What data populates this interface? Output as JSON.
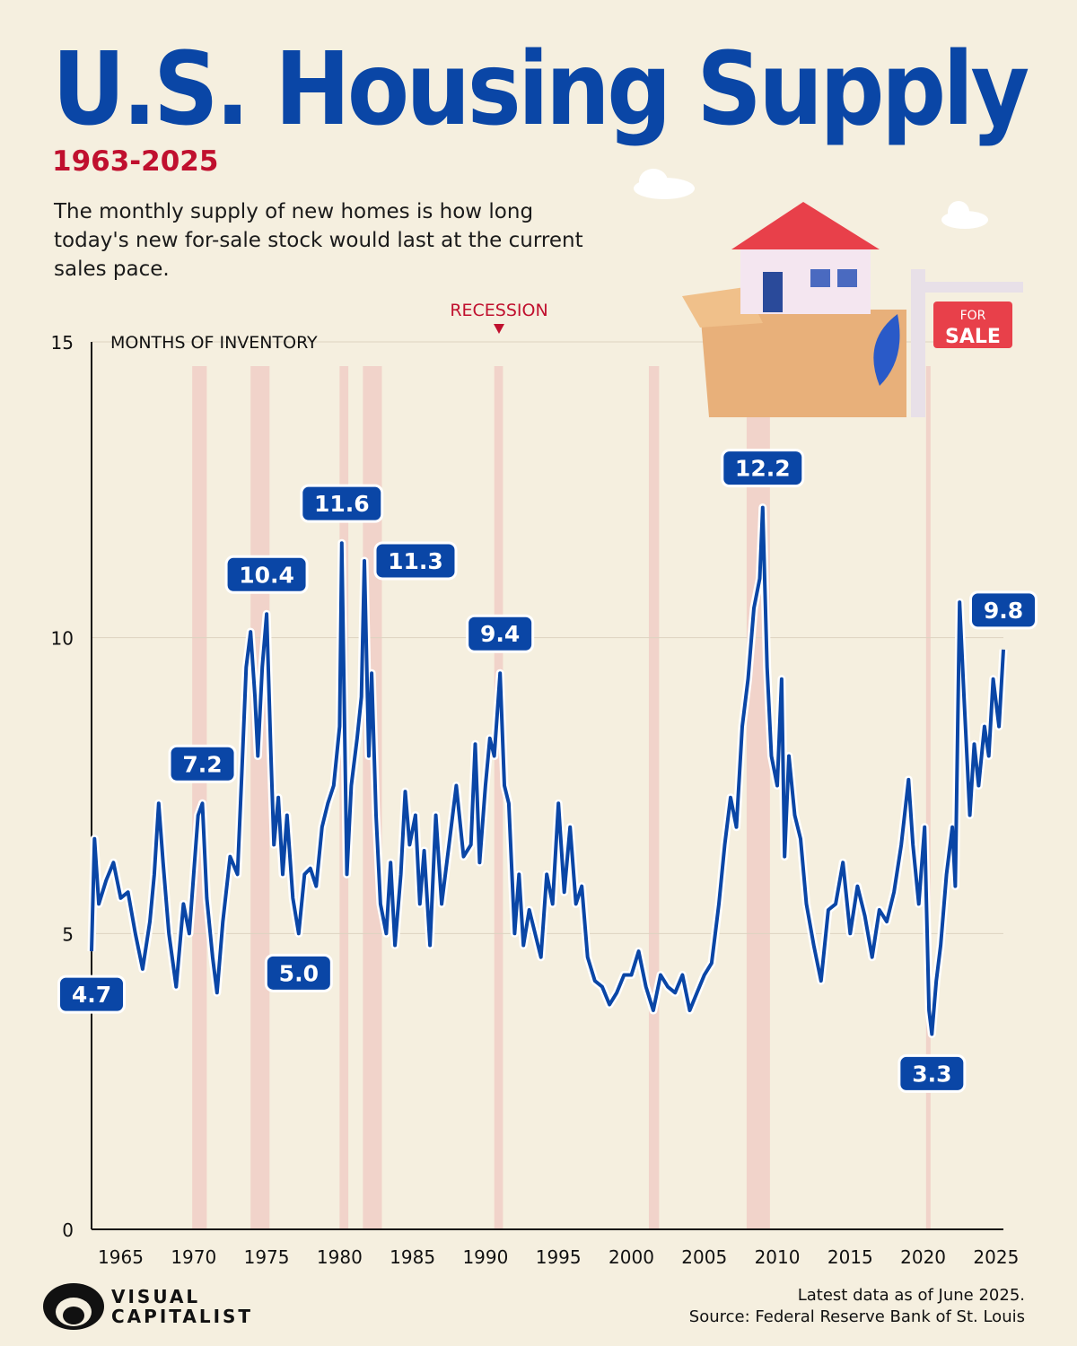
{
  "header": {
    "title": "U.S. Housing Supply",
    "subtitle": "1963-2025",
    "description": "The monthly supply of new homes is how long today's new for-sale stock would last at the current sales pace."
  },
  "illustration": {
    "sign_top": "FOR",
    "sign_bottom": "SALE"
  },
  "footer": {
    "note": "Latest data as of June 2025.",
    "source": "Source: Federal Reserve Bank of St. Louis",
    "logo_line1": "VISUAL",
    "logo_line2": "CAPITALIST"
  },
  "colors": {
    "line": "#0a46a6",
    "title": "#0a46a6",
    "subtitle": "#c0102e",
    "recession": "#f0c8c0",
    "background": "#f5efdf"
  },
  "chart_data": {
    "type": "line",
    "ylabel": "MONTHS OF INVENTORY",
    "ylim": [
      0,
      15
    ],
    "xlim": [
      1963,
      2025.5
    ],
    "yticks": [
      0,
      5,
      10,
      15
    ],
    "xticks": [
      1965,
      1970,
      1975,
      1980,
      1985,
      1990,
      1995,
      2000,
      2005,
      2010,
      2015,
      2020,
      2025
    ],
    "grid": true,
    "recession_label": "RECESSION",
    "recessions": [
      [
        1969.9,
        1970.9
      ],
      [
        1973.9,
        1975.2
      ],
      [
        1980.0,
        1980.6
      ],
      [
        1981.6,
        1982.9
      ],
      [
        1990.6,
        1991.2
      ],
      [
        2001.2,
        2001.9
      ],
      [
        2007.9,
        2009.5
      ],
      [
        2020.2,
        2020.4
      ]
    ],
    "series": [
      {
        "x": [
          1963.0,
          1963.2,
          1963.5,
          1964,
          1964.5,
          1965,
          1965.5,
          1966,
          1966.5,
          1967,
          1967.3,
          1967.6,
          1967.9,
          1968.3,
          1968.8,
          1969.3,
          1969.7,
          1970,
          1970.3,
          1970.6,
          1970.9,
          1971.3,
          1971.6,
          1972,
          1972.5,
          1973,
          1973.3,
          1973.6,
          1973.9,
          1974.2,
          1974.4,
          1974.7,
          1975,
          1975.3,
          1975.5,
          1975.8,
          1976.1,
          1976.4,
          1976.8,
          1977.2,
          1977.6,
          1978,
          1978.4,
          1978.8,
          1979.2,
          1979.6,
          1980,
          1980.15,
          1980.5,
          1980.8,
          1981.2,
          1981.5,
          1981.7,
          1982,
          1982.2,
          1982.5,
          1982.8,
          1983.2,
          1983.5,
          1983.8,
          1984.2,
          1984.5,
          1984.8,
          1985.2,
          1985.5,
          1985.8,
          1986.2,
          1986.6,
          1987,
          1987.5,
          1988,
          1988.5,
          1989,
          1989.3,
          1989.6,
          1990,
          1990.3,
          1990.6,
          1991.0,
          1991.3,
          1991.6,
          1992,
          1992.3,
          1992.6,
          1993,
          1993.4,
          1993.8,
          1994.2,
          1994.6,
          1995,
          1995.4,
          1995.8,
          1996.2,
          1996.6,
          1997,
          1997.5,
          1998,
          1998.5,
          1999,
          1999.5,
          2000,
          2000.5,
          2001,
          2001.5,
          2002,
          2002.5,
          2003,
          2003.5,
          2004,
          2004.5,
          2005,
          2005.5,
          2006,
          2006.4,
          2006.8,
          2007.2,
          2007.6,
          2008,
          2008.4,
          2008.8,
          2009.0,
          2009.3,
          2009.6,
          2010,
          2010.3,
          2010.5,
          2010.8,
          2011.2,
          2011.6,
          2012,
          2012.5,
          2013,
          2013.5,
          2014,
          2014.5,
          2015,
          2015.5,
          2016,
          2016.5,
          2017,
          2017.5,
          2018,
          2018.5,
          2019,
          2019.3,
          2019.7,
          2020.1,
          2020.4,
          2020.6,
          2020.9,
          2021.2,
          2021.6,
          2022,
          2022.2,
          2022.5,
          2022.8,
          2023.2,
          2023.5,
          2023.8,
          2024.2,
          2024.5,
          2024.8,
          2025.2,
          2025.5
        ],
        "y": [
          4.7,
          6.6,
          5.5,
          5.9,
          6.2,
          5.6,
          5.7,
          5.0,
          4.4,
          5.2,
          6.0,
          7.2,
          6.2,
          5.0,
          4.1,
          5.5,
          5.0,
          6.0,
          7.0,
          7.2,
          5.6,
          4.6,
          4.0,
          5.2,
          6.3,
          6.0,
          7.7,
          9.5,
          10.1,
          9.0,
          8.0,
          9.5,
          10.4,
          8.0,
          6.5,
          7.3,
          6.0,
          7.0,
          5.6,
          5.0,
          6.0,
          6.1,
          5.8,
          6.8,
          7.2,
          7.5,
          8.5,
          11.6,
          6.0,
          7.5,
          8.3,
          9.0,
          11.3,
          8.0,
          9.4,
          7.0,
          5.5,
          5.0,
          6.2,
          4.8,
          6.0,
          7.4,
          6.5,
          7.0,
          5.5,
          6.4,
          4.8,
          7.0,
          5.5,
          6.5,
          7.5,
          6.3,
          6.5,
          8.2,
          6.2,
          7.5,
          8.3,
          8.0,
          9.4,
          7.5,
          7.2,
          5.0,
          6.0,
          4.8,
          5.4,
          5.0,
          4.6,
          6.0,
          5.5,
          7.2,
          5.7,
          6.8,
          5.5,
          5.8,
          4.6,
          4.2,
          4.1,
          3.8,
          4.0,
          4.3,
          4.3,
          4.7,
          4.1,
          3.7,
          4.3,
          4.1,
          4.0,
          4.3,
          3.7,
          4.0,
          4.3,
          4.5,
          5.5,
          6.5,
          7.3,
          6.8,
          8.5,
          9.3,
          10.5,
          11.0,
          12.2,
          9.5,
          8.0,
          7.5,
          9.3,
          6.3,
          8.0,
          7.0,
          6.6,
          5.5,
          4.8,
          4.2,
          5.4,
          5.5,
          6.2,
          5.0,
          5.8,
          5.3,
          4.6,
          5.4,
          5.2,
          5.7,
          6.5,
          7.6,
          6.5,
          5.5,
          6.8,
          3.7,
          3.3,
          4.2,
          4.8,
          6.0,
          6.8,
          5.8,
          10.6,
          9.0,
          7.0,
          8.2,
          7.5,
          8.5,
          8.0,
          9.3,
          8.5,
          9.8
        ]
      }
    ],
    "annotations": [
      {
        "x": 1963.0,
        "y": 4.7,
        "label": "4.7",
        "position": "below"
      },
      {
        "x": 1970.6,
        "y": 7.2,
        "label": "7.2",
        "position": "above"
      },
      {
        "x": 1975.0,
        "y": 10.4,
        "label": "10.4",
        "position": "above"
      },
      {
        "x": 1977.2,
        "y": 5.0,
        "label": "5.0",
        "position": "below"
      },
      {
        "x": 1980.15,
        "y": 11.6,
        "label": "11.6",
        "position": "above"
      },
      {
        "x": 1981.7,
        "y": 11.3,
        "label": "11.3",
        "position": "right"
      },
      {
        "x": 1991.0,
        "y": 9.4,
        "label": "9.4",
        "position": "above"
      },
      {
        "x": 2009.0,
        "y": 12.2,
        "label": "12.2",
        "position": "above"
      },
      {
        "x": 2020.6,
        "y": 3.3,
        "label": "3.3",
        "position": "below"
      },
      {
        "x": 2025.5,
        "y": 9.8,
        "label": "9.8",
        "position": "above"
      }
    ]
  }
}
